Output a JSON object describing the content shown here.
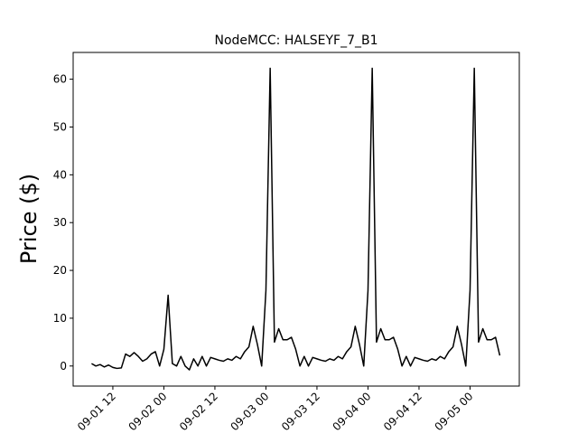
{
  "chart_data": {
    "type": "line",
    "title": "NodeMCC: HALSEYF_7_B1",
    "y_label": "Price ($)",
    "color": "#000000",
    "x": [
      "09-01 07:00",
      "09-01 08:00",
      "09-01 09:00",
      "09-01 10:00",
      "09-01 11:00",
      "09-01 12:00",
      "09-01 13:00",
      "09-01 14:00",
      "09-01 15:00",
      "09-01 16:00",
      "09-01 17:00",
      "09-01 18:00",
      "09-01 19:00",
      "09-01 20:00",
      "09-01 21:00",
      "09-01 22:00",
      "09-01 23:00",
      "09-02 00:00",
      "09-02 01:00",
      "09-02 02:00",
      "09-02 03:00",
      "09-02 04:00",
      "09-02 05:00",
      "09-02 06:00",
      "09-02 07:00",
      "09-02 08:00",
      "09-02 09:00",
      "09-02 10:00",
      "09-02 11:00",
      "09-02 12:00",
      "09-02 13:00",
      "09-02 14:00",
      "09-02 15:00",
      "09-02 16:00",
      "09-02 17:00",
      "09-02 18:00",
      "09-02 19:00",
      "09-02 20:00",
      "09-02 21:00",
      "09-02 22:00",
      "09-02 23:00",
      "09-03 00:00",
      "09-03 01:00",
      "09-03 02:00",
      "09-03 03:00",
      "09-03 04:00",
      "09-03 05:00",
      "09-03 06:00",
      "09-03 07:00",
      "09-03 08:00",
      "09-03 09:00",
      "09-03 10:00",
      "09-03 11:00",
      "09-03 12:00",
      "09-03 13:00",
      "09-03 14:00",
      "09-03 15:00",
      "09-03 16:00",
      "09-03 17:00",
      "09-03 18:00",
      "09-03 19:00",
      "09-03 20:00",
      "09-03 21:00",
      "09-03 22:00",
      "09-03 23:00",
      "09-04 00:00",
      "09-04 01:00",
      "09-04 02:00",
      "09-04 03:00",
      "09-04 04:00",
      "09-04 05:00",
      "09-04 06:00",
      "09-04 07:00",
      "09-04 08:00",
      "09-04 09:00",
      "09-04 10:00",
      "09-04 11:00",
      "09-04 12:00",
      "09-04 13:00",
      "09-04 14:00",
      "09-04 15:00",
      "09-04 16:00",
      "09-04 17:00",
      "09-04 18:00",
      "09-04 19:00",
      "09-04 20:00",
      "09-04 21:00",
      "09-04 22:00",
      "09-04 23:00",
      "09-05 00:00",
      "09-05 01:00",
      "09-05 02:00",
      "09-05 03:00",
      "09-05 04:00",
      "09-05 05:00",
      "09-05 06:00",
      "09-05 07:00"
    ],
    "values": [
      0.5,
      0,
      0.3,
      -0.2,
      0.2,
      -0.3,
      -0.5,
      -0.4,
      2.5,
      2.0,
      2.8,
      2.0,
      1.0,
      1.5,
      2.5,
      3.0,
      0,
      3.5,
      14.8,
      0.5,
      0,
      2.0,
      0,
      -0.8,
      1.5,
      0,
      2,
      0,
      1.8,
      1.5,
      1.2,
      1.0,
      1.5,
      1.2,
      2.0,
      1.5,
      3.0,
      4.0,
      8.3,
      4.5,
      0,
      15.8,
      62.3,
      5.0,
      7.8,
      5.5,
      5.5,
      6.0,
      3.5,
      0,
      2,
      0,
      1.8,
      1.5,
      1.2,
      1.0,
      1.5,
      1.2,
      2.0,
      1.5,
      3.0,
      4.0,
      8.3,
      4.5,
      0,
      15.8,
      62.3,
      5.0,
      7.8,
      5.5,
      5.5,
      6.0,
      3.5,
      0,
      2,
      0,
      1.8,
      1.5,
      1.2,
      1.0,
      1.5,
      1.2,
      2.0,
      1.5,
      3.0,
      4.0,
      8.3,
      4.5,
      0,
      15.8,
      62.3,
      5.0,
      7.8,
      5.5,
      5.5,
      6.0,
      2.2
    ],
    "xlim": [
      "09-01 02:40",
      "09-05 11:35"
    ],
    "xticks": [
      {
        "value": "09-01 12:00",
        "label": "09-01 12"
      },
      {
        "value": "09-02 00:00",
        "label": "09-02 00"
      },
      {
        "value": "09-02 12:00",
        "label": "09-02 12"
      },
      {
        "value": "09-03 00:00",
        "label": "09-03 00"
      },
      {
        "value": "09-03 12:00",
        "label": "09-03 12"
      },
      {
        "value": "09-04 00:00",
        "label": "09-04 00"
      },
      {
        "value": "09-04 12:00",
        "label": "09-04 12"
      },
      {
        "value": "09-05 00:00",
        "label": "09-05 00"
      }
    ],
    "ylim": [
      -4.2,
      65.6
    ],
    "yticks": [
      0,
      10,
      20,
      30,
      40,
      50,
      60
    ]
  }
}
